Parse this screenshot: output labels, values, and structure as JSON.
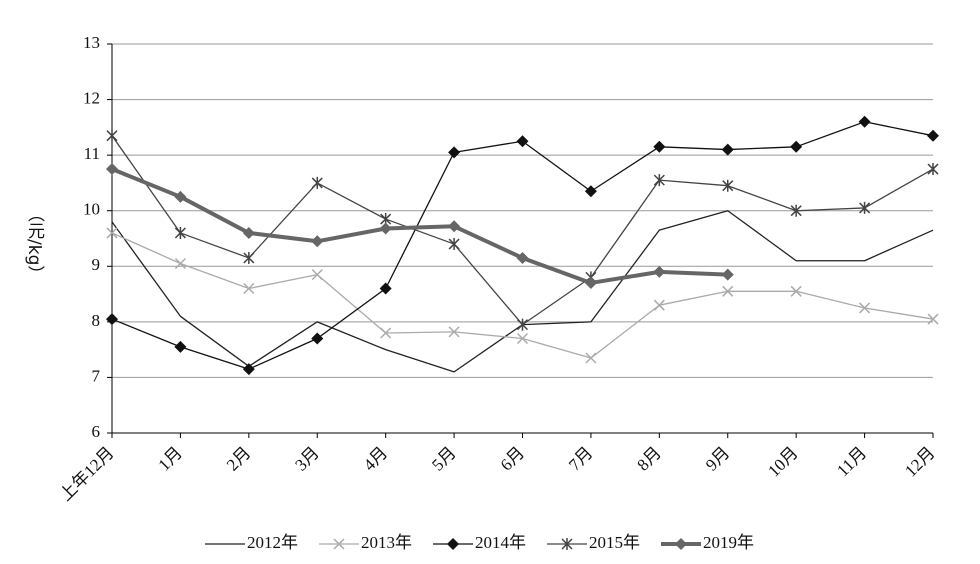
{
  "chart_data": {
    "type": "line",
    "y_label": "（元/kg）",
    "categories": [
      "上年12月",
      "1月",
      "2月",
      "3月",
      "4月",
      "5月",
      "6月",
      "7月",
      "8月",
      "9月",
      "10月",
      "11月",
      "12月"
    ],
    "series": [
      {
        "name": "2012年",
        "color": "#222222",
        "marker": "none",
        "line_width": 1.3,
        "values": [
          9.8,
          8.1,
          7.2,
          8.0,
          7.5,
          7.1,
          7.95,
          8.0,
          9.65,
          10.0,
          9.1,
          9.1,
          9.65
        ]
      },
      {
        "name": "2013年",
        "color": "#aaaaaa",
        "marker": "x",
        "line_width": 1.3,
        "values": [
          9.6,
          9.05,
          8.6,
          8.85,
          7.8,
          7.82,
          7.7,
          7.35,
          8.3,
          8.55,
          8.55,
          8.25,
          8.05
        ]
      },
      {
        "name": "2014年",
        "color": "#111111",
        "marker": "diamond",
        "line_width": 1.3,
        "values": [
          8.05,
          7.55,
          7.15,
          7.7,
          8.6,
          11.05,
          11.25,
          10.35,
          11.15,
          11.1,
          11.15,
          11.6,
          11.35
        ]
      },
      {
        "name": "2015年",
        "color": "#444444",
        "marker": "asterisk",
        "line_width": 1.3,
        "values": [
          11.35,
          9.6,
          9.15,
          10.5,
          9.85,
          9.4,
          7.95,
          8.8,
          10.55,
          10.45,
          10.0,
          10.05,
          10.75
        ]
      },
      {
        "name": "2019年",
        "color": "#666666",
        "marker": "diamond",
        "line_width": 4,
        "values": [
          10.75,
          10.25,
          9.6,
          9.45,
          9.68,
          9.72,
          9.15,
          8.7,
          8.9,
          8.85,
          null,
          null,
          null
        ]
      }
    ],
    "ylim": [
      6,
      13
    ],
    "yticks": [
      6,
      7,
      8,
      9,
      10,
      11,
      12,
      13
    ],
    "grid": true,
    "legend": "bottom"
  }
}
